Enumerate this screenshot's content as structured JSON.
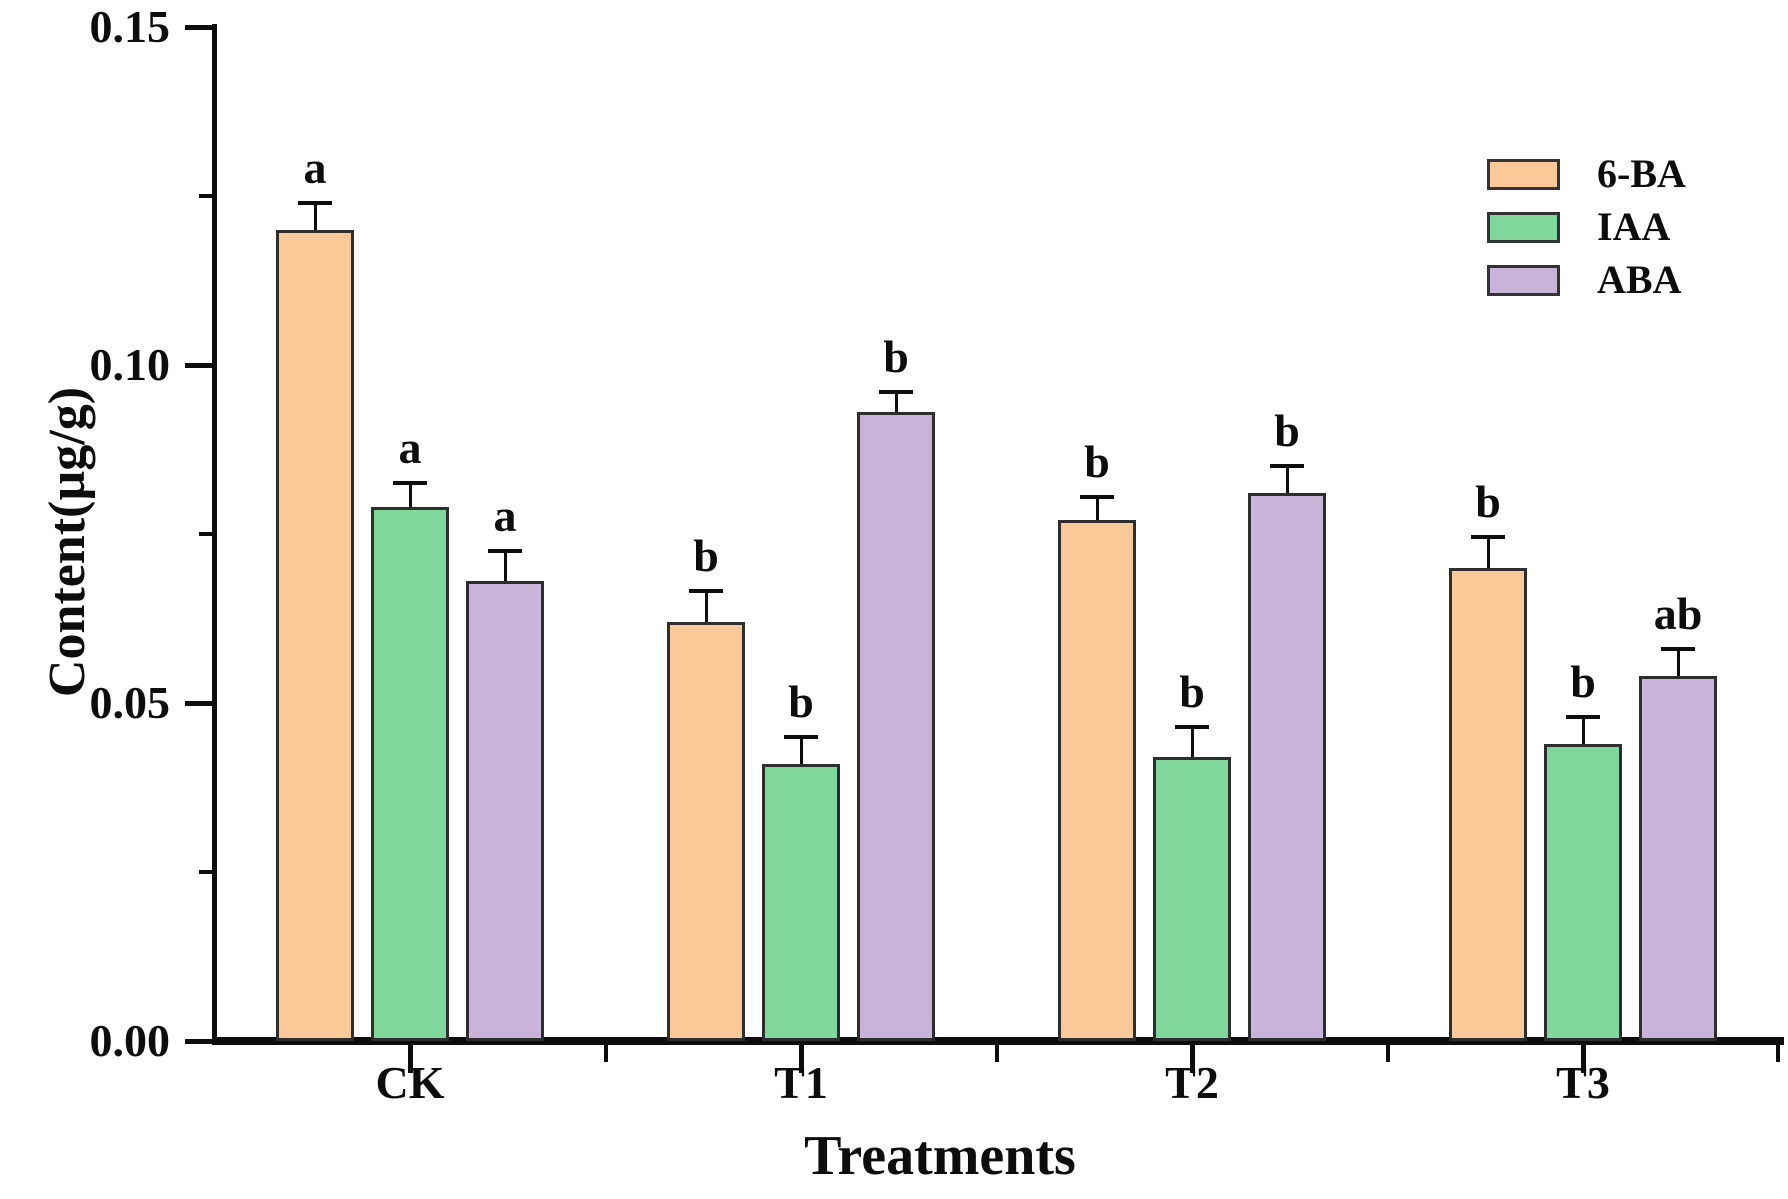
{
  "figure": {
    "background": "#ffffff",
    "axis_color": "#0d0d0d",
    "text_color": "#0d0d0d"
  },
  "chart_data": {
    "type": "bar",
    "title": "",
    "xlabel": "Treatments",
    "ylabel": "Content(µg/g)",
    "categories": [
      "CK",
      "T1",
      "T2",
      "T3"
    ],
    "series": [
      {
        "name": "6-BA",
        "color": "#FBC997",
        "values": [
          0.12,
          0.062,
          0.077,
          0.07
        ],
        "errors": [
          0.004,
          0.0045,
          0.0035,
          0.0045
        ],
        "sig_letters": [
          "a",
          "b",
          "b",
          "b"
        ]
      },
      {
        "name": "IAA",
        "color": "#80D79B",
        "values": [
          0.079,
          0.041,
          0.042,
          0.044
        ],
        "errors": [
          0.0035,
          0.004,
          0.0045,
          0.004
        ],
        "sig_letters": [
          "a",
          "b",
          "b",
          "b"
        ]
      },
      {
        "name": "ABA",
        "color": "#C9B3D9",
        "values": [
          0.068,
          0.093,
          0.081,
          0.054
        ],
        "errors": [
          0.0045,
          0.003,
          0.004,
          0.004
        ],
        "sig_letters": [
          "a",
          "b",
          "b",
          "ab"
        ]
      }
    ],
    "ylim": [
      0,
      0.15
    ],
    "yticks": [
      {
        "value": 0.0,
        "label": "0.00"
      },
      {
        "value": 0.05,
        "label": "0.05"
      },
      {
        "value": 0.1,
        "label": "0.10"
      },
      {
        "value": 0.15,
        "label": "0.15"
      }
    ],
    "yticks_minor": [
      0.025,
      0.075,
      0.125
    ],
    "grid": false,
    "error_bars": true,
    "legend_position": "upper right"
  }
}
